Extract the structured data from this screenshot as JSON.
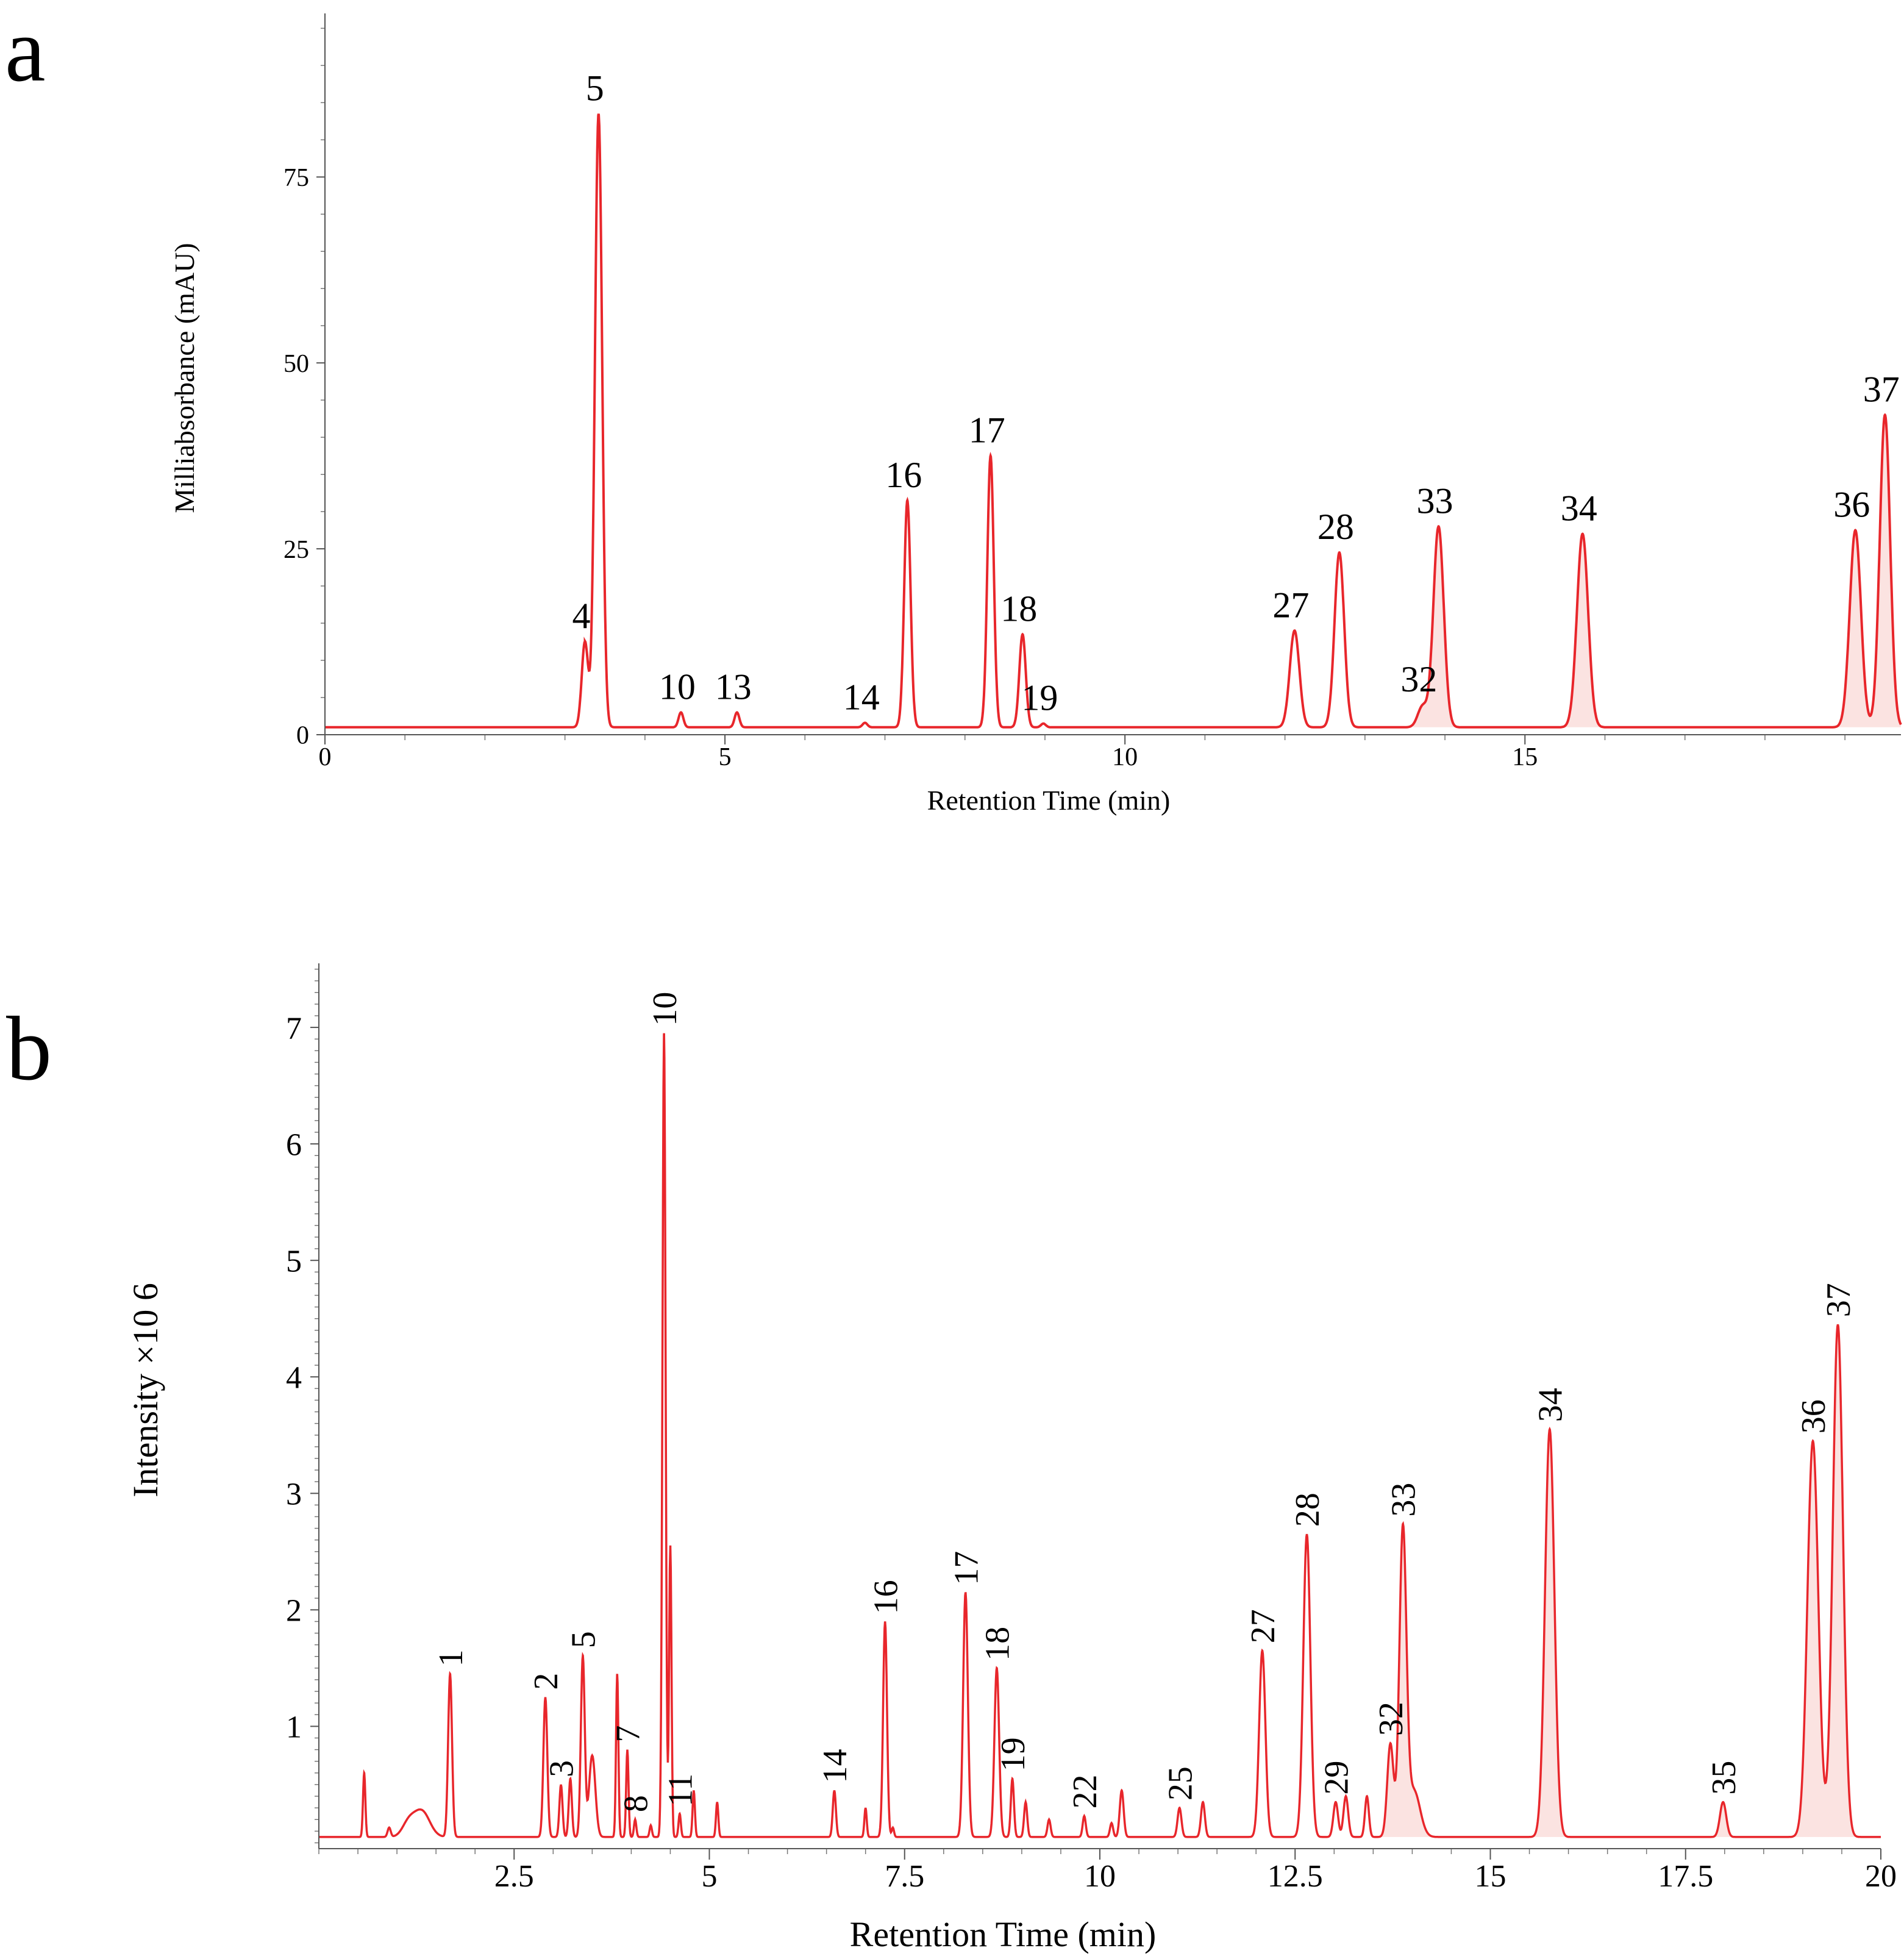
{
  "figure_labels": {
    "a": "a",
    "b": "b"
  },
  "colors": {
    "trace": "#e8262b",
    "fill": "#fbe3e1",
    "axis": "#555555",
    "text": "#000000"
  },
  "chart_data": [
    {
      "id": "a",
      "type": "line",
      "title": "",
      "xlabel": "Retention Time (min)",
      "ylabel": "Milliabsorbance (mAU)",
      "xlim": [
        0,
        19.7
      ],
      "ylim": [
        0,
        97
      ],
      "xticks": [
        0,
        5,
        10,
        15
      ],
      "xtick_labels": [
        "0",
        "5",
        "10",
        "15"
      ],
      "yticks": [
        0,
        25,
        50,
        75
      ],
      "ytick_labels": [
        "0",
        "25",
        "50",
        "75"
      ],
      "baseline": 1,
      "peaks": [
        {
          "label": "4",
          "t": 3.25,
          "h": 11.5,
          "w": 0.04
        },
        {
          "label": "5",
          "t": 3.42,
          "h": 82.5,
          "w": 0.045
        },
        {
          "label": "10",
          "t": 4.45,
          "h": 2.0,
          "w": 0.03
        },
        {
          "label": "13",
          "t": 5.15,
          "h": 2.0,
          "w": 0.03
        },
        {
          "label": "14",
          "t": 6.75,
          "h": 0.6,
          "w": 0.03
        },
        {
          "label": "16",
          "t": 7.28,
          "h": 30.5,
          "w": 0.04
        },
        {
          "label": "17",
          "t": 8.32,
          "h": 36.5,
          "w": 0.04
        },
        {
          "label": "18",
          "t": 8.72,
          "h": 12.5,
          "w": 0.04
        },
        {
          "label": "19",
          "t": 8.98,
          "h": 0.5,
          "w": 0.03
        },
        {
          "label": "27",
          "t": 12.12,
          "h": 13.0,
          "w": 0.06
        },
        {
          "label": "28",
          "t": 12.68,
          "h": 23.5,
          "w": 0.06
        },
        {
          "label": "32",
          "t": 13.72,
          "h": 2.8,
          "w": 0.06
        },
        {
          "label": "33",
          "t": 13.92,
          "h": 27.0,
          "w": 0.065
        },
        {
          "label": "34",
          "t": 15.72,
          "h": 26.0,
          "w": 0.07
        },
        {
          "label": "36",
          "t": 19.13,
          "h": 26.5,
          "w": 0.07
        },
        {
          "label": "37",
          "t": 19.5,
          "h": 42.0,
          "w": 0.065
        }
      ]
    },
    {
      "id": "b",
      "type": "line",
      "title": "",
      "xlabel": "Retention Time (min)",
      "ylabel": "Intensity ×10 6",
      "xlim": [
        0,
        20
      ],
      "ylim": [
        -0.05,
        7.55
      ],
      "xticks": [
        2.5,
        5,
        7.5,
        10,
        12.5,
        15,
        17.5,
        20
      ],
      "xtick_labels": [
        "2.5",
        "5",
        "7.5",
        "10",
        "12.5",
        "15",
        "17.5",
        "20"
      ],
      "yticks": [
        1,
        2,
        3,
        4,
        5,
        6,
        7
      ],
      "ytick_labels": [
        "1",
        "2",
        "3",
        "4",
        "5",
        "6",
        "7"
      ],
      "baseline": 0.05,
      "peaks": [
        {
          "label": "",
          "t": 0.58,
          "h": 0.55,
          "w": 0.015
        },
        {
          "label": "",
          "t": 0.9,
          "h": 0.08,
          "w": 0.02
        },
        {
          "label": "",
          "t": 1.15,
          "h": 0.12,
          "w": 0.08
        },
        {
          "label": "",
          "t": 1.32,
          "h": 0.22,
          "w": 0.1
        },
        {
          "label": "1",
          "t": 1.68,
          "h": 1.4,
          "w": 0.025
        },
        {
          "label": "2",
          "t": 2.9,
          "h": 1.2,
          "w": 0.025
        },
        {
          "label": "3",
          "t": 3.1,
          "h": 0.45,
          "w": 0.02
        },
        {
          "label": "",
          "t": 3.22,
          "h": 0.5,
          "w": 0.02
        },
        {
          "label": "5",
          "t": 3.38,
          "h": 1.55,
          "w": 0.025
        },
        {
          "label": "",
          "t": 3.5,
          "h": 0.7,
          "w": 0.04
        },
        {
          "label": "",
          "t": 3.82,
          "h": 1.4,
          "w": 0.015
        },
        {
          "label": "7",
          "t": 3.95,
          "h": 0.75,
          "w": 0.015
        },
        {
          "label": "8",
          "t": 4.05,
          "h": 0.15,
          "w": 0.015
        },
        {
          "label": "",
          "t": 4.25,
          "h": 0.1,
          "w": 0.015
        },
        {
          "label": "10",
          "t": 4.42,
          "h": 6.9,
          "w": 0.02
        },
        {
          "label": "",
          "t": 4.5,
          "h": 2.5,
          "w": 0.015
        },
        {
          "label": "11",
          "t": 4.62,
          "h": 0.2,
          "w": 0.015
        },
        {
          "label": "",
          "t": 4.8,
          "h": 0.4,
          "w": 0.015
        },
        {
          "label": "",
          "t": 5.1,
          "h": 0.3,
          "w": 0.015
        },
        {
          "label": "14",
          "t": 6.6,
          "h": 0.4,
          "w": 0.02
        },
        {
          "label": "",
          "t": 7.0,
          "h": 0.25,
          "w": 0.015
        },
        {
          "label": "16",
          "t": 7.25,
          "h": 1.85,
          "w": 0.025
        },
        {
          "label": "",
          "t": 7.35,
          "h": 0.08,
          "w": 0.015
        },
        {
          "label": "17",
          "t": 8.28,
          "h": 2.1,
          "w": 0.03
        },
        {
          "label": "18",
          "t": 8.68,
          "h": 1.45,
          "w": 0.03
        },
        {
          "label": "19",
          "t": 8.88,
          "h": 0.5,
          "w": 0.02
        },
        {
          "label": "",
          "t": 9.05,
          "h": 0.3,
          "w": 0.02
        },
        {
          "label": "",
          "t": 9.35,
          "h": 0.15,
          "w": 0.02
        },
        {
          "label": "22",
          "t": 9.8,
          "h": 0.18,
          "w": 0.02
        },
        {
          "label": "",
          "t": 10.15,
          "h": 0.12,
          "w": 0.02
        },
        {
          "label": "",
          "t": 10.28,
          "h": 0.4,
          "w": 0.025
        },
        {
          "label": "25",
          "t": 11.02,
          "h": 0.25,
          "w": 0.025
        },
        {
          "label": "",
          "t": 11.32,
          "h": 0.3,
          "w": 0.025
        },
        {
          "label": "27",
          "t": 12.08,
          "h": 1.6,
          "w": 0.04
        },
        {
          "label": "28",
          "t": 12.65,
          "h": 2.6,
          "w": 0.045
        },
        {
          "label": "29",
          "t": 13.02,
          "h": 0.3,
          "w": 0.03
        },
        {
          "label": "",
          "t": 13.15,
          "h": 0.35,
          "w": 0.03
        },
        {
          "label": "",
          "t": 13.42,
          "h": 0.35,
          "w": 0.025
        },
        {
          "label": "32",
          "t": 13.72,
          "h": 0.8,
          "w": 0.04
        },
        {
          "label": "33",
          "t": 13.88,
          "h": 2.6,
          "w": 0.045
        },
        {
          "label": "",
          "t": 14.02,
          "h": 0.4,
          "w": 0.08
        },
        {
          "label": "34",
          "t": 15.76,
          "h": 3.5,
          "w": 0.06
        },
        {
          "label": "35",
          "t": 17.98,
          "h": 0.3,
          "w": 0.04
        },
        {
          "label": "36",
          "t": 19.13,
          "h": 3.4,
          "w": 0.07
        },
        {
          "label": "37",
          "t": 19.45,
          "h": 4.4,
          "w": 0.065
        }
      ]
    }
  ]
}
